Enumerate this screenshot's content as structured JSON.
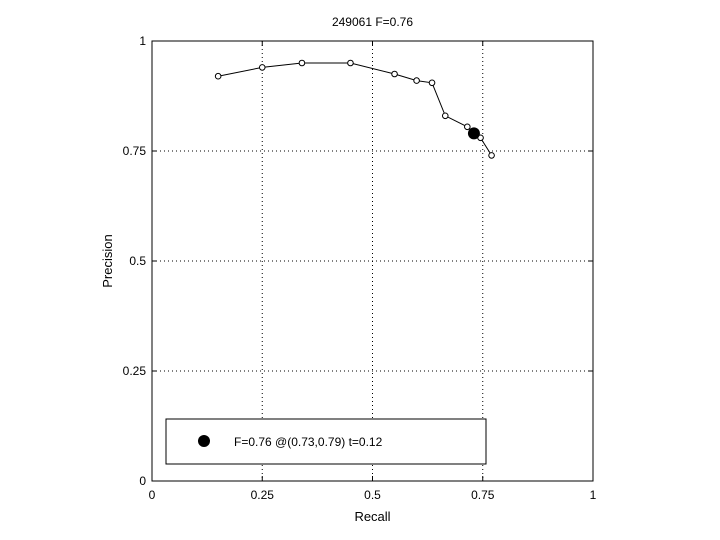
{
  "chart_data": {
    "type": "scatter",
    "title": "249061 F=0.76",
    "xlabel": "Recall",
    "ylabel": "Precision",
    "xlim": [
      0,
      1
    ],
    "ylim": [
      0,
      1
    ],
    "xticks": [
      "0",
      "0.25",
      "0.5",
      "0.75",
      "1"
    ],
    "yticks": [
      "0",
      "0.25",
      "0.5",
      "0.75",
      "1"
    ],
    "grid": true,
    "grid_style": "dotted",
    "series": [
      {
        "points": [
          [
            0.15,
            0.92
          ],
          [
            0.25,
            0.94
          ],
          [
            0.34,
            0.95
          ],
          [
            0.45,
            0.95
          ],
          [
            0.55,
            0.925
          ],
          [
            0.6,
            0.91
          ],
          [
            0.635,
            0.905
          ],
          [
            0.665,
            0.83
          ],
          [
            0.715,
            0.805
          ],
          [
            0.745,
            0.78
          ],
          [
            0.77,
            0.74
          ]
        ],
        "style": "line with open circle markers",
        "color": "#000000"
      }
    ],
    "highlight": {
      "x": 0.73,
      "y": 0.79,
      "style": "filled circle",
      "color": "#000000"
    },
    "legend": {
      "placement": "bottom-left",
      "entries": [
        {
          "label": "F=0.76 @(0.73,0.79) t=0.12",
          "marker": "filled circle"
        }
      ]
    }
  }
}
